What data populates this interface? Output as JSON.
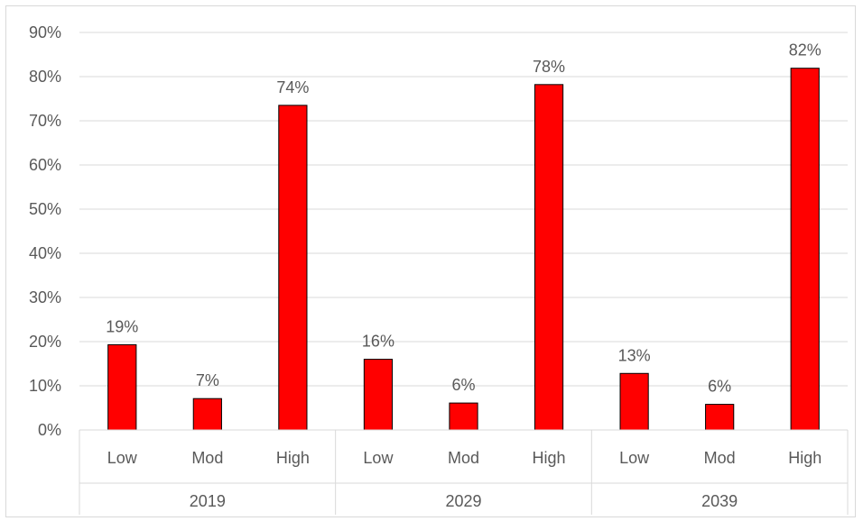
{
  "chart_data": {
    "type": "bar",
    "title": "",
    "xlabel": "",
    "ylabel": "",
    "ylim": [
      0,
      90
    ],
    "yticks": [
      "0%",
      "10%",
      "20%",
      "30%",
      "40%",
      "50%",
      "60%",
      "70%",
      "80%",
      "90%"
    ],
    "ytick_values": [
      0,
      10,
      20,
      30,
      40,
      50,
      60,
      70,
      80,
      90
    ],
    "grid": true,
    "legend": "none",
    "bar_color": "#ff0000",
    "bar_border_color": "#000000",
    "groups": [
      {
        "name": "2019",
        "categories": [
          "Low",
          "Mod",
          "High"
        ],
        "values": [
          19.3,
          7.1,
          73.5
        ],
        "labels": [
          "19%",
          "7%",
          "74%"
        ]
      },
      {
        "name": "2029",
        "categories": [
          "Low",
          "Mod",
          "High"
        ],
        "values": [
          16.0,
          6.1,
          78.2
        ],
        "labels": [
          "16%",
          "6%",
          "78%"
        ]
      },
      {
        "name": "2039",
        "categories": [
          "Low",
          "Mod",
          "High"
        ],
        "values": [
          12.8,
          5.8,
          81.9
        ],
        "labels": [
          "13%",
          "6%",
          "82%"
        ]
      }
    ]
  }
}
